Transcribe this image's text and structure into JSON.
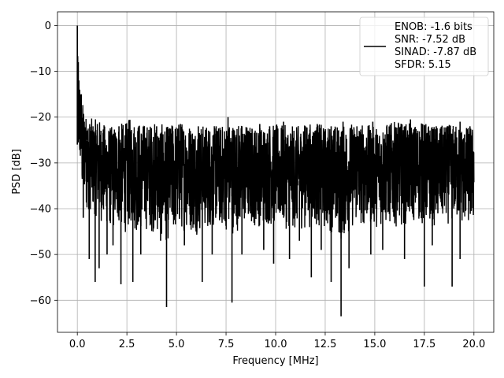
{
  "chart_data": {
    "type": "line",
    "xlabel": "Frequency [MHz]",
    "ylabel": "PSD [dB]",
    "xlim": [
      -1.0,
      21.0
    ],
    "ylim": [
      -67.0,
      3.0
    ],
    "xticks": [
      0.0,
      2.5,
      5.0,
      7.5,
      10.0,
      12.5,
      15.0,
      17.5,
      20.0
    ],
    "xtick_labels": [
      "0.0",
      "2.5",
      "5.0",
      "7.5",
      "10.0",
      "12.5",
      "15.0",
      "17.5",
      "20.0"
    ],
    "yticks": [
      0,
      -10,
      -20,
      -30,
      -40,
      -50,
      -60
    ],
    "ytick_labels": [
      "0",
      "−10",
      "−20",
      "−30",
      "−40",
      "−50",
      "−60"
    ],
    "grid": true,
    "legend_position": "top-right",
    "series": [
      {
        "legend_lines": [
          "ENOB: -1.6 bits",
          "SNR: -7.52 dB",
          "SINAD: -7.87 dB",
          "SFDR: 5.15"
        ],
        "color": "#000000",
        "x": [
          0.0,
          0.02,
          0.04,
          0.06,
          0.08,
          0.1,
          0.12,
          0.15,
          0.2,
          0.25,
          0.3,
          0.35,
          0.4,
          0.45,
          0.5,
          0.6,
          0.7,
          0.8,
          1.0,
          1.2,
          1.5,
          1.8,
          2.0,
          2.5,
          2.7,
          3.0,
          3.5,
          4.0,
          4.5,
          5.0,
          5.5,
          6.0,
          6.5,
          7.0,
          7.8,
          8.5,
          9.0,
          10.0,
          11.0,
          12.0,
          12.5,
          13.0,
          13.3,
          14.0,
          15.0,
          16.0,
          17.0,
          17.5,
          18.0,
          19.0,
          19.5,
          20.0
        ],
        "y": [
          0.0,
          -8.0,
          -14.0,
          -18.0,
          -20.0,
          -17.0,
          -22.0,
          -15.0,
          -21.0,
          -24.0,
          -20.0,
          -26.0,
          -23.0,
          -28.0,
          -25.0,
          -27.0,
          -26.0,
          -28.0,
          -27.0,
          -29.0,
          -30.0,
          -31.0,
          -30.0,
          -32.0,
          -31.0,
          -33.0,
          -31.0,
          -32.0,
          -34.0,
          -33.0,
          -33.0,
          -34.0,
          -33.0,
          -32.0,
          -35.0,
          -33.0,
          -34.0,
          -33.0,
          -34.0,
          -34.0,
          -33.0,
          -34.0,
          -36.0,
          -34.0,
          -33.0,
          -34.0,
          -33.0,
          -34.0,
          -34.0,
          -33.0,
          -34.0,
          -35.0
        ],
        "band_upper": [
          0.0,
          -6.0,
          -10.0,
          -13.0,
          -15.0,
          -13.0,
          -17.0,
          -12.0,
          -16.0,
          -18.0,
          -16.0,
          -20.0,
          -18.0,
          -20.0,
          -19.0,
          -21.0,
          -20.0,
          -21.0,
          -20.0,
          -21.0,
          -22.0,
          -22.0,
          -21.5,
          -21.0,
          -20.0,
          -21.0,
          -21.5,
          -21.0,
          -22.0,
          -21.0,
          -21.0,
          -22.0,
          -21.5,
          -22.0,
          -21.0,
          -21.5,
          -22.0,
          -21.5,
          -22.0,
          -21.0,
          -22.0,
          -21.5,
          -22.0,
          -21.0,
          -22.0,
          -21.0,
          -21.5,
          -21.0,
          -22.0,
          -21.5,
          -22.0,
          -22.0
        ],
        "band_lower": [
          -26.0,
          -30.0,
          -34.0,
          -33.0,
          -35.0,
          -32.0,
          -34.0,
          -35.0,
          -38.0,
          -42.0,
          -40.0,
          -42.0,
          -38.0,
          -43.0,
          -44.0,
          -45.0,
          -44.0,
          -45.0,
          -46.0,
          -47.0,
          -48.0,
          -49.0,
          -48.0,
          -50.0,
          -48.0,
          -50.0,
          -49.0,
          -50.0,
          -52.0,
          -50.0,
          -49.0,
          -50.0,
          -49.0,
          -48.0,
          -50.0,
          -48.0,
          -48.0,
          -48.0,
          -49.0,
          -48.0,
          -49.0,
          -50.0,
          -52.0,
          -48.0,
          -48.0,
          -48.0,
          -47.0,
          -48.0,
          -48.0,
          -47.0,
          -48.0,
          -48.0
        ],
        "dips_x": [
          0.3,
          0.6,
          0.9,
          1.1,
          1.5,
          1.8,
          2.2,
          2.8,
          3.2,
          4.2,
          4.5,
          5.4,
          6.3,
          6.8,
          7.8,
          8.3,
          9.4,
          9.9,
          10.7,
          11.2,
          11.8,
          12.3,
          12.8,
          13.3,
          13.7,
          14.8,
          15.4,
          16.5,
          17.5,
          17.9,
          18.9,
          19.3
        ],
        "dips_y": [
          -42.0,
          -51.0,
          -56.0,
          -53.0,
          -50.0,
          -48.0,
          -56.5,
          -56.0,
          -50.0,
          -47.0,
          -61.5,
          -48.0,
          -56.0,
          -50.0,
          -60.5,
          -50.0,
          -49.0,
          -52.0,
          -51.0,
          -47.0,
          -55.0,
          -49.0,
          -56.0,
          -63.5,
          -53.0,
          -50.0,
          -49.0,
          -51.0,
          -57.0,
          -48.0,
          -57.0,
          -51.0
        ],
        "spikes_x": [
          0.05,
          0.08,
          0.12,
          0.2,
          0.35,
          0.5,
          0.7,
          1.0,
          1.3,
          2.1,
          2.6,
          3.1,
          4.0,
          4.8,
          5.2,
          6.1,
          7.0,
          7.6,
          8.3,
          9.2,
          9.7,
          10.4,
          11.5,
          12.1,
          12.8,
          13.4,
          14.1,
          14.9,
          15.6,
          16.2,
          16.8,
          17.4,
          18.1,
          18.7,
          19.3,
          19.8
        ],
        "spikes_y": [
          -8.0,
          -12.0,
          -14.0,
          -15.0,
          -21.0,
          -23.0,
          -23.0,
          -24.0,
          -23.5,
          -22.0,
          -21.0,
          -22.0,
          -22.0,
          -22.0,
          -21.5,
          -22.0,
          -22.0,
          -20.0,
          -22.0,
          -21.5,
          -22.0,
          -21.0,
          -22.0,
          -21.5,
          -22.0,
          -21.0,
          -22.0,
          -21.0,
          -22.0,
          -21.5,
          -20.5,
          -21.5,
          -22.0,
          -22.0,
          -21.0,
          -22.0
        ]
      }
    ]
  }
}
